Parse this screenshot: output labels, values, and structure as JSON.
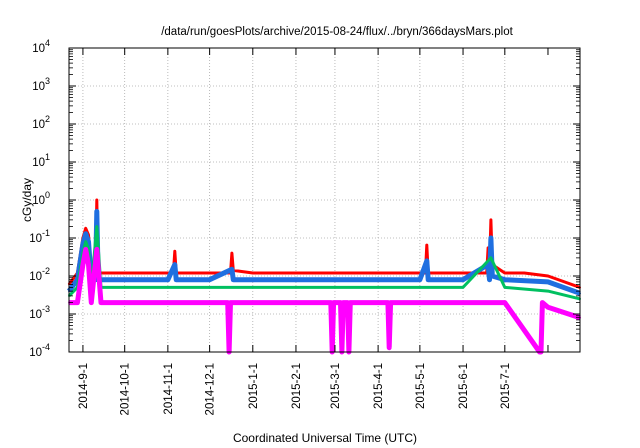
{
  "chart_data": {
    "type": "line",
    "title": "/data/run/goesPlots/archive/2015-08-24/flux/../bryn/366daysMars.plot",
    "xlabel": "Coordinated Universal Time (UTC)",
    "ylabel": "cGy/day",
    "y_scale": "log",
    "ylim": [
      0.0001,
      10000
    ],
    "xlim": [
      "2014-08-22",
      "2015-08-24"
    ],
    "grid": true,
    "y_ticks": [
      {
        "base": "10",
        "exp": "-4"
      },
      {
        "base": "10",
        "exp": "-3"
      },
      {
        "base": "10",
        "exp": "-2"
      },
      {
        "base": "10",
        "exp": "-1"
      },
      {
        "base": "10",
        "exp": "0"
      },
      {
        "base": "10",
        "exp": "1"
      },
      {
        "base": "10",
        "exp": "2"
      },
      {
        "base": "10",
        "exp": "3"
      },
      {
        "base": "10",
        "exp": "4"
      }
    ],
    "x_ticks": [
      {
        "date": "2014-09-01",
        "label": "2014-9-1"
      },
      {
        "date": "2014-10-01",
        "label": "2014-10-1"
      },
      {
        "date": "2014-11-01",
        "label": "2014-11-1"
      },
      {
        "date": "2014-12-01",
        "label": "2014-12-1"
      },
      {
        "date": "2015-01-01",
        "label": "2015-1-1"
      },
      {
        "date": "2015-02-01",
        "label": "2015-2-1"
      },
      {
        "date": "2015-03-01",
        "label": "2015-3-1"
      },
      {
        "date": "2015-04-01",
        "label": "2015-4-1"
      },
      {
        "date": "2015-05-01",
        "label": "2015-5-1"
      },
      {
        "date": "2015-06-01",
        "label": "2015-6-1"
      },
      {
        "date": "2015-07-01",
        "label": "2015-7-1"
      }
    ],
    "x_minor_ticks": [
      "2015-08-01"
    ],
    "series": [
      {
        "color": "#ff0000",
        "x": [
          "2014-08-22",
          "2014-08-28",
          "2014-09-01",
          "2014-09-03",
          "2014-09-05",
          "2014-09-07",
          "2014-09-10",
          "2014-09-11",
          "2014-09-12",
          "2014-09-14",
          "2014-09-20",
          "2014-10-01",
          "2014-10-15",
          "2014-11-01",
          "2014-11-05",
          "2014-11-06",
          "2014-11-07",
          "2014-11-20",
          "2014-12-01",
          "2014-12-16",
          "2014-12-17",
          "2014-12-18",
          "2015-01-01",
          "2015-01-20",
          "2015-02-01",
          "2015-02-15",
          "2015-03-01",
          "2015-03-15",
          "2015-04-01",
          "2015-04-15",
          "2015-05-01",
          "2015-05-05",
          "2015-05-06",
          "2015-05-07",
          "2015-05-20",
          "2015-06-01",
          "2015-06-15",
          "2015-06-18",
          "2015-06-19",
          "2015-06-20",
          "2015-06-21",
          "2015-06-22",
          "2015-07-01",
          "2015-07-15",
          "2015-08-01",
          "2015-08-24"
        ],
        "y": [
          0.006,
          0.012,
          0.1,
          0.18,
          0.12,
          0.012,
          0.012,
          1.0,
          0.012,
          0.012,
          0.012,
          0.012,
          0.012,
          0.012,
          0.012,
          0.045,
          0.012,
          0.012,
          0.012,
          0.012,
          0.04,
          0.014,
          0.012,
          0.012,
          0.012,
          0.012,
          0.012,
          0.012,
          0.012,
          0.012,
          0.012,
          0.012,
          0.065,
          0.012,
          0.012,
          0.012,
          0.012,
          0.012,
          0.055,
          0.015,
          0.3,
          0.02,
          0.012,
          0.012,
          0.01,
          0.005
        ]
      },
      {
        "color": "#1f6fe0",
        "x": [
          "2014-08-22",
          "2014-08-28",
          "2014-09-01",
          "2014-09-03",
          "2014-09-05",
          "2014-09-07",
          "2014-09-10",
          "2014-09-11",
          "2014-09-12",
          "2014-09-14",
          "2014-10-01",
          "2014-11-01",
          "2014-11-06",
          "2014-11-07",
          "2014-12-01",
          "2014-12-17",
          "2014-12-18",
          "2015-01-01",
          "2015-02-01",
          "2015-03-01",
          "2015-04-01",
          "2015-05-01",
          "2015-05-06",
          "2015-05-07",
          "2015-06-01",
          "2015-06-19",
          "2015-06-20",
          "2015-06-21",
          "2015-06-22",
          "2015-07-01",
          "2015-08-01",
          "2015-08-24"
        ],
        "y": [
          0.004,
          0.008,
          0.07,
          0.13,
          0.08,
          0.008,
          0.008,
          0.5,
          0.008,
          0.008,
          0.008,
          0.008,
          0.02,
          0.008,
          0.008,
          0.015,
          0.008,
          0.008,
          0.008,
          0.008,
          0.008,
          0.008,
          0.025,
          0.008,
          0.008,
          0.02,
          0.008,
          0.1,
          0.01,
          0.008,
          0.007,
          0.0035
        ]
      },
      {
        "color": "#00c060",
        "x": [
          "2014-08-22",
          "2014-08-28",
          "2014-09-01",
          "2014-09-03",
          "2014-09-05",
          "2014-09-07",
          "2014-09-11",
          "2014-09-14",
          "2014-10-01",
          "2014-11-01",
          "2014-12-01",
          "2015-01-01",
          "2015-02-01",
          "2015-03-01",
          "2015-04-01",
          "2015-05-01",
          "2015-06-01",
          "2015-06-21",
          "2015-07-01",
          "2015-08-01",
          "2015-08-24"
        ],
        "y": [
          0.003,
          0.005,
          0.04,
          0.08,
          0.05,
          0.005,
          0.2,
          0.005,
          0.005,
          0.005,
          0.005,
          0.005,
          0.005,
          0.005,
          0.005,
          0.005,
          0.005,
          0.03,
          0.005,
          0.004,
          0.0025
        ]
      },
      {
        "color": "#ff00ff",
        "x": [
          "2014-08-22",
          "2014-08-28",
          "2014-09-01",
          "2014-09-03",
          "2014-09-05",
          "2014-09-07",
          "2014-09-11",
          "2014-09-14",
          "2014-10-01",
          "2014-11-01",
          "2014-12-01",
          "2014-12-14",
          "2014-12-15",
          "2014-12-16",
          "2015-01-01",
          "2015-02-01",
          "2015-02-26",
          "2015-02-27",
          "2015-02-28",
          "2015-03-05",
          "2015-03-06",
          "2015-03-07",
          "2015-03-10",
          "2015-03-11",
          "2015-03-12",
          "2015-04-01",
          "2015-04-08",
          "2015-04-09",
          "2015-04-10",
          "2015-05-01",
          "2015-06-01",
          "2015-07-01",
          "2015-07-26",
          "2015-07-27",
          "2015-07-28",
          "2015-08-01",
          "2015-08-24"
        ],
        "y": [
          0.002,
          0.002,
          0.02,
          0.05,
          0.02,
          0.002,
          0.05,
          0.002,
          0.002,
          0.002,
          0.002,
          0.002,
          0.0001,
          0.002,
          0.002,
          0.002,
          0.002,
          0.0001,
          0.002,
          0.002,
          0.0001,
          0.002,
          0.002,
          0.0001,
          0.002,
          0.002,
          0.002,
          0.00013,
          0.002,
          0.002,
          0.002,
          0.002,
          0.0001,
          0.0001,
          0.002,
          0.0015,
          0.0008
        ]
      }
    ]
  }
}
